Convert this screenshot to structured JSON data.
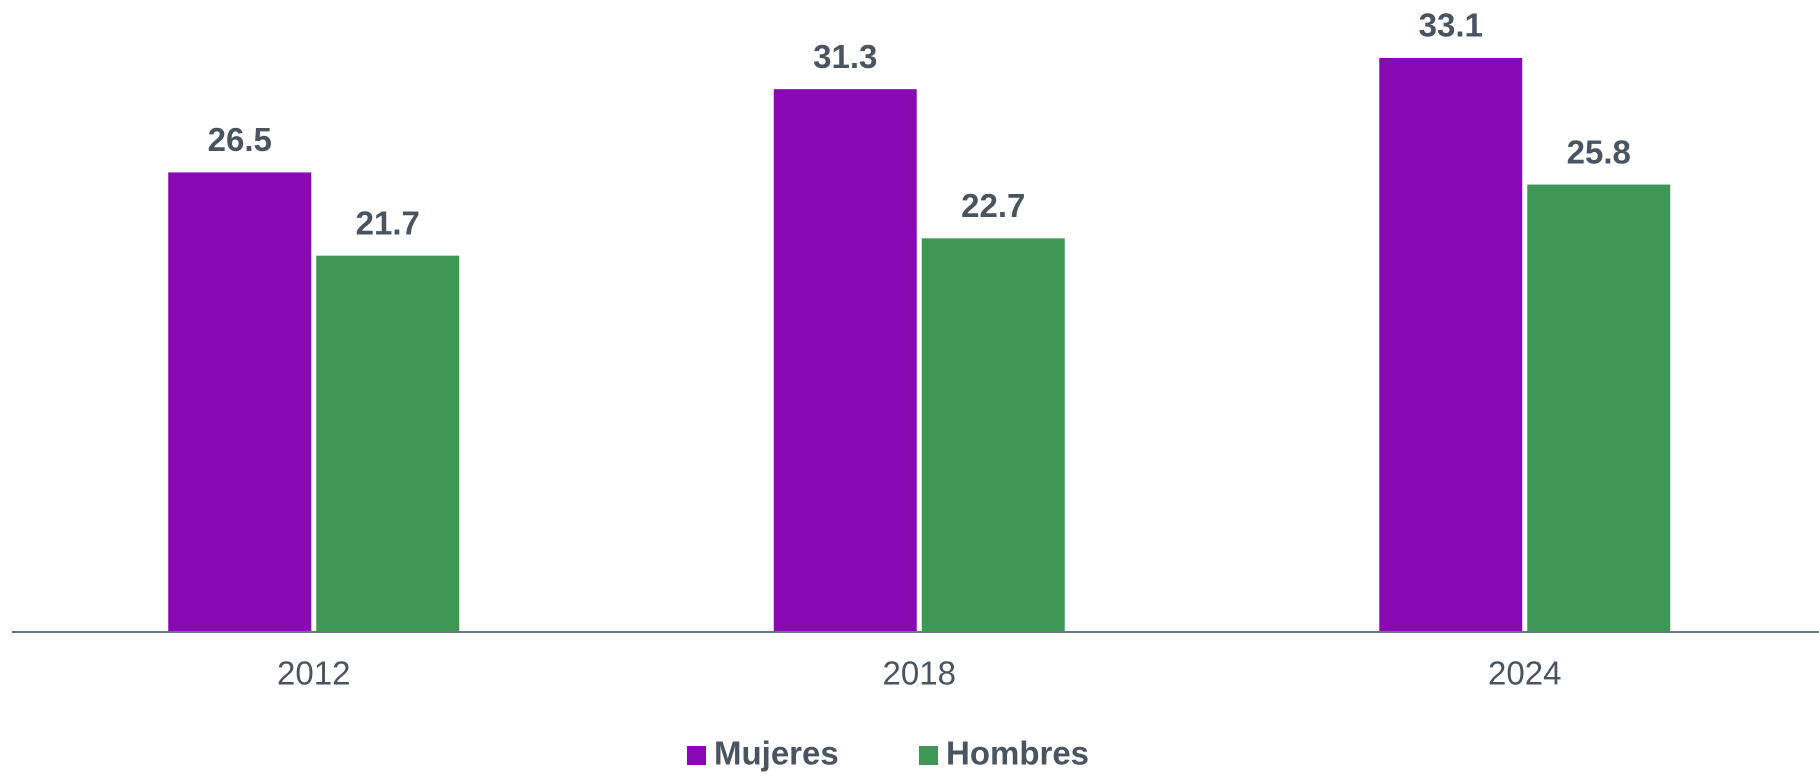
{
  "chart_data": {
    "type": "bar",
    "categories": [
      "2012",
      "2018",
      "2024"
    ],
    "series": [
      {
        "name": "Mujeres",
        "color": "#8a07b4",
        "values": [
          26.5,
          31.3,
          33.1
        ]
      },
      {
        "name": "Hombres",
        "color": "#3e9755",
        "values": [
          21.7,
          22.7,
          25.8
        ]
      }
    ],
    "ylim": [
      0,
      35
    ],
    "legend": "bottom"
  }
}
